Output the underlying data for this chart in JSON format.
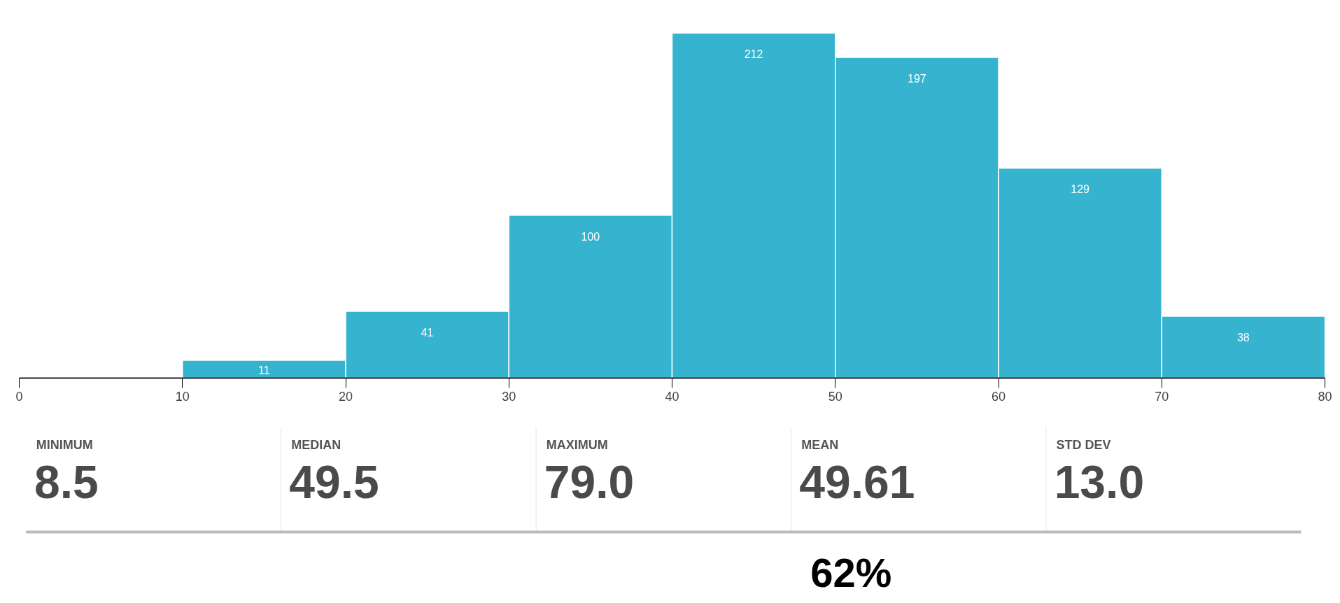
{
  "chart_data": {
    "type": "bar",
    "x": [
      15,
      25,
      35,
      45,
      55,
      65,
      75
    ],
    "values": [
      11,
      41,
      100,
      212,
      197,
      129,
      38
    ],
    "data_labels": true,
    "color": "#35b3cf",
    "xlim": [
      0,
      80
    ],
    "xticks": [
      0,
      10,
      20,
      30,
      40,
      50,
      60,
      70,
      80
    ],
    "tick_labels": "x",
    "grid": false,
    "annotations": [
      "MINIMUM",
      "8.5",
      "MEDIAN",
      "49.5",
      "MAXIMUM",
      "79.0",
      "MEAN",
      "49.61",
      "STD DEV",
      "13.0",
      "62%"
    ]
  }
}
